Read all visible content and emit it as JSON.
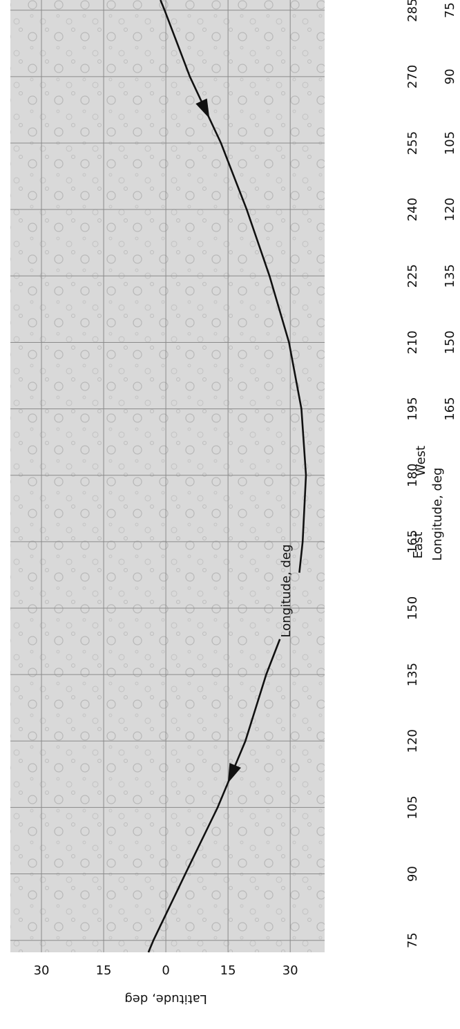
{
  "chart_data": {
    "type": "line",
    "xlabel": "Longitude, deg",
    "ylabel": "Latitude, deg",
    "annotations": [
      "East",
      "West",
      "Longitude, deg"
    ],
    "x": [
      72.3,
      75,
      90,
      105,
      120,
      135,
      143,
      150,
      158,
      165,
      180,
      195,
      210,
      225,
      240,
      255,
      270,
      285,
      287.3
    ],
    "values": [
      4.2,
      3,
      -4.7,
      -12.5,
      -19.2,
      -24.2,
      -27.5,
      null,
      -32.2,
      -33,
      -33.8,
      -32.7,
      -29.7,
      -25,
      -19.5,
      -13.3,
      -5.8,
      0.3,
      1.3
    ],
    "color": "#111111",
    "xlim": [
      72.3,
      287.3
    ],
    "ylim": [
      -38.3,
      37.5
    ],
    "xticks": [
      75,
      90,
      105,
      120,
      135,
      150,
      165,
      180,
      195,
      210,
      225,
      240,
      255,
      270,
      285
    ],
    "x2ticks": [
      {
        "value": 285,
        "label": "75"
      },
      {
        "value": 270,
        "label": "90"
      },
      {
        "value": 255,
        "label": "105"
      },
      {
        "value": 240,
        "label": "120"
      },
      {
        "value": 225,
        "label": "135"
      },
      {
        "value": 210,
        "label": "150"
      },
      {
        "value": 195,
        "label": "165"
      }
    ],
    "yticks": [
      30,
      15,
      0,
      {
        "value": -15,
        "label": "15"
      },
      {
        "value": -30,
        "label": "30"
      }
    ],
    "grid": true
  }
}
